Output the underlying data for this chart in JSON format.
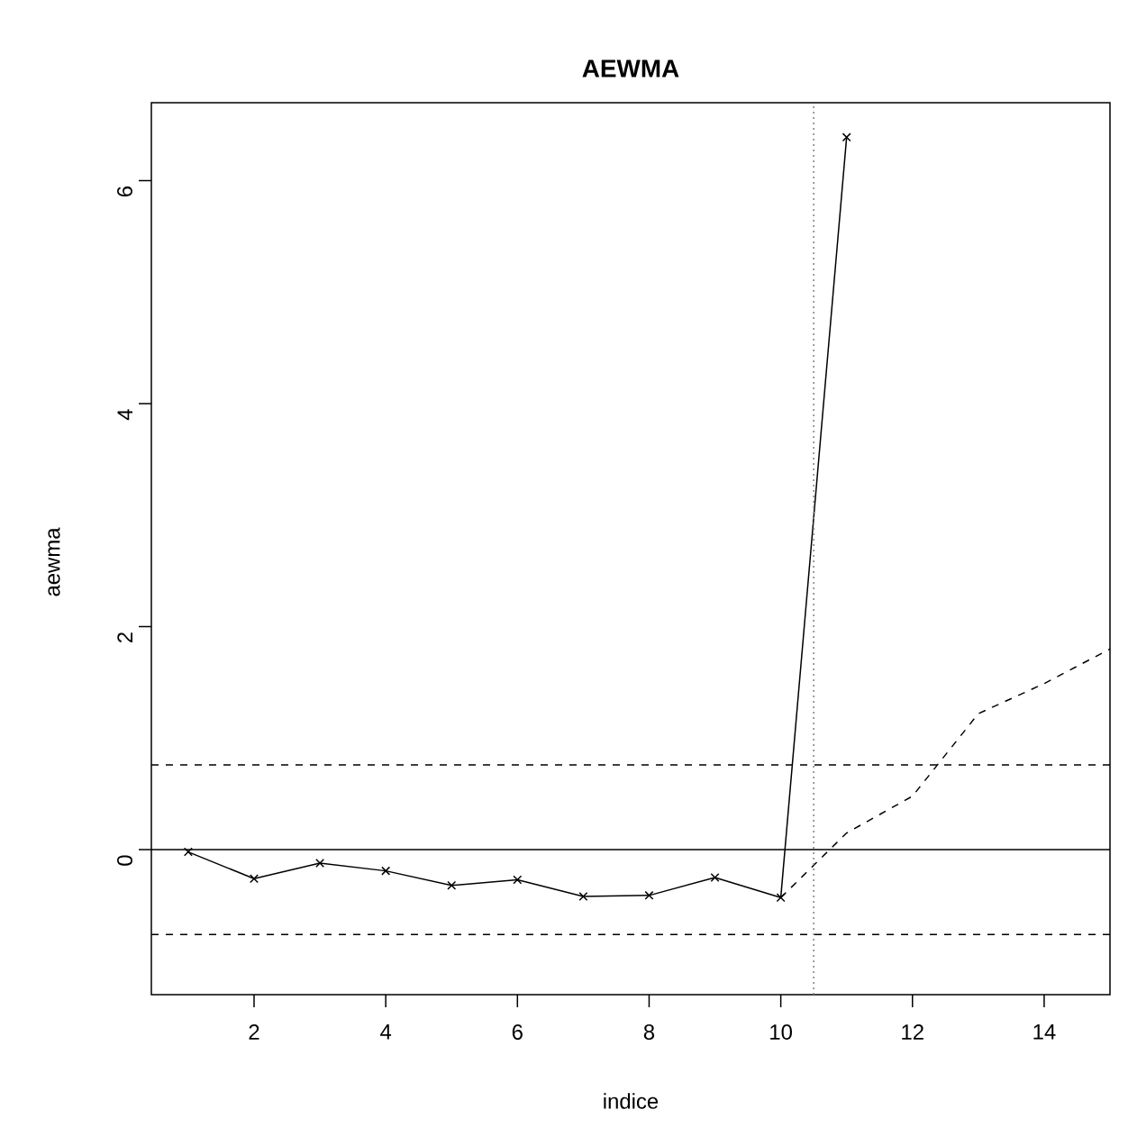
{
  "chart_data": {
    "type": "line",
    "title": "AEWMA",
    "xlabel": "indice",
    "ylabel": "aewma",
    "xlim": [
      0.44,
      15.0
    ],
    "ylim": [
      -1.3,
      6.7
    ],
    "xticks": [
      2,
      4,
      6,
      8,
      10,
      12,
      14
    ],
    "yticks": [
      0,
      2,
      4,
      6
    ],
    "series": [
      {
        "color": "#000000",
        "marker": "cross",
        "line_style": "solid",
        "x": [
          1,
          2,
          3,
          4,
          5,
          6,
          7,
          8,
          9,
          10,
          11
        ],
        "values": [
          -0.02,
          -0.26,
          -0.12,
          -0.19,
          -0.32,
          -0.27,
          -0.42,
          -0.41,
          -0.25,
          -0.43,
          6.39
        ]
      },
      {
        "color": "#000000",
        "marker": "none",
        "line_style": "dashed",
        "x": [
          10,
          11,
          12,
          13,
          14,
          15
        ],
        "values": [
          -0.43,
          0.15,
          0.48,
          1.22,
          1.49,
          1.8
        ]
      }
    ],
    "ref_lines": [
      {
        "axis": "y",
        "value": 0,
        "color": "#000000",
        "line_style": "solid"
      },
      {
        "axis": "y",
        "value": 0.76,
        "color": "#000000",
        "line_style": "dashed"
      },
      {
        "axis": "y",
        "value": -0.76,
        "color": "#000000",
        "line_style": "dashed"
      },
      {
        "axis": "x",
        "value": 10.5,
        "color": "#808080",
        "line_style": "dotted"
      }
    ]
  }
}
